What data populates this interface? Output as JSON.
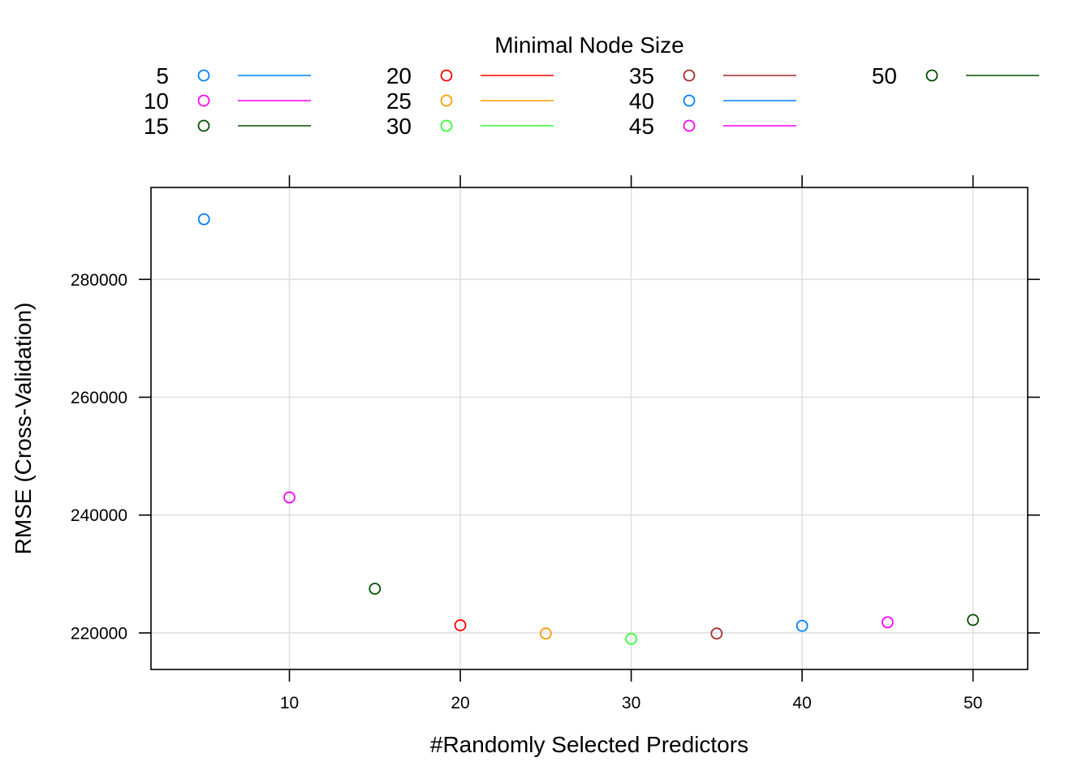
{
  "chart_data": {
    "type": "scatter",
    "title": "",
    "xlabel": "#Randomly Selected Predictors",
    "ylabel": "RMSE (Cross-Validation)",
    "xlim": [
      1.9,
      53.2
    ],
    "ylim": [
      213800,
      295600
    ],
    "xticks": [
      10,
      20,
      30,
      40,
      50
    ],
    "yticks": [
      220000,
      240000,
      260000,
      280000
    ],
    "xtick_labels": [
      "10",
      "20",
      "30",
      "40",
      "50"
    ],
    "ytick_labels": [
      "220000",
      "240000",
      "260000",
      "280000"
    ],
    "grid": true,
    "legend": {
      "title": "Minimal Node Size",
      "placement": "top",
      "columns": 4
    },
    "series": [
      {
        "name": "5",
        "color": "#0080ff",
        "x": [
          5
        ],
        "y": [
          290200
        ]
      },
      {
        "name": "10",
        "color": "#ff00ff",
        "x": [
          10
        ],
        "y": [
          243000
        ]
      },
      {
        "name": "15",
        "color": "#005000",
        "x": [
          15
        ],
        "y": [
          227500
        ]
      },
      {
        "name": "20",
        "color": "#ff0000",
        "x": [
          20
        ],
        "y": [
          221300
        ]
      },
      {
        "name": "25",
        "color": "#ff9900",
        "x": [
          25
        ],
        "y": [
          219900
        ]
      },
      {
        "name": "30",
        "color": "#33ff33",
        "x": [
          30
        ],
        "y": [
          219000
        ]
      },
      {
        "name": "35",
        "color": "#a52a2a",
        "x": [
          35
        ],
        "y": [
          219900
        ]
      },
      {
        "name": "40",
        "color": "#0080ff",
        "x": [
          40
        ],
        "y": [
          221200
        ]
      },
      {
        "name": "45",
        "color": "#ff00ff",
        "x": [
          45
        ],
        "y": [
          221800
        ]
      },
      {
        "name": "50",
        "color": "#005000",
        "x": [
          50
        ],
        "y": [
          222200
        ]
      }
    ]
  }
}
